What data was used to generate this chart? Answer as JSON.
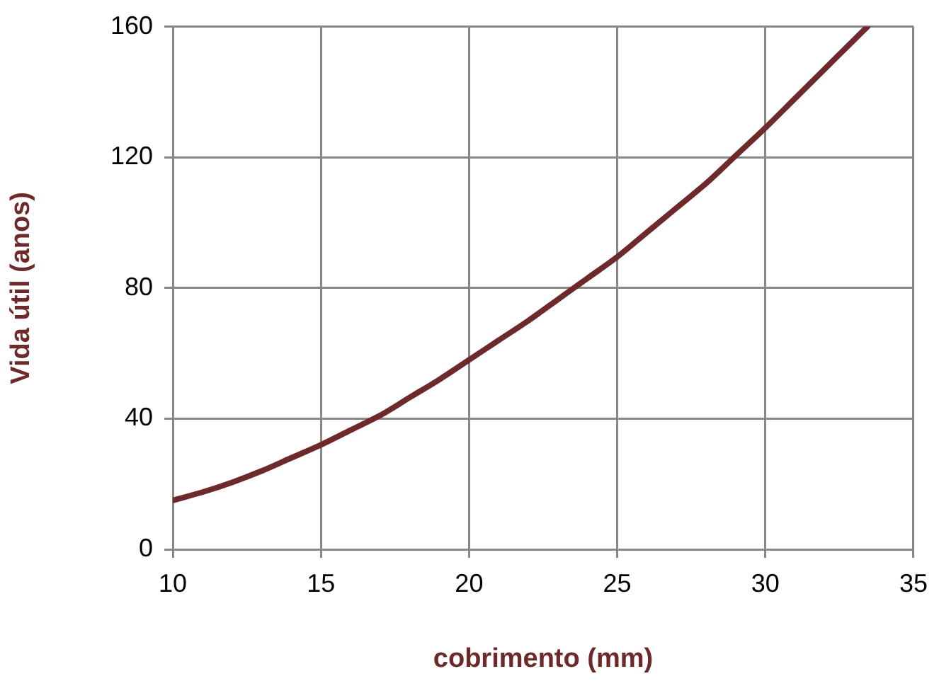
{
  "chart_data": {
    "type": "line",
    "xlabel": "cobrimento (mm)",
    "ylabel": "Vida útil (anos)",
    "xlim": [
      10,
      35
    ],
    "xticks": [
      10,
      15,
      20,
      25,
      30,
      35
    ],
    "ylim": [
      0,
      160
    ],
    "yticks": [
      0,
      40,
      80,
      120,
      160
    ],
    "grid": true,
    "legend": false,
    "marker": "none",
    "line_style": "solid",
    "series": [
      {
        "color": "#6e2a2a",
        "x": [
          10,
          11,
          12,
          13,
          14,
          15,
          16,
          17,
          18,
          19,
          20,
          21,
          22,
          23,
          24,
          25,
          26,
          27,
          28,
          29,
          30,
          31,
          32,
          33,
          33.45
        ],
        "values": [
          15,
          17.5,
          20.5,
          24,
          28,
          32,
          36.5,
          41,
          46.5,
          52,
          58,
          64,
          70,
          76.5,
          83,
          89.5,
          97,
          104.5,
          112,
          120.5,
          129,
          138,
          147,
          156,
          160
        ]
      }
    ]
  }
}
